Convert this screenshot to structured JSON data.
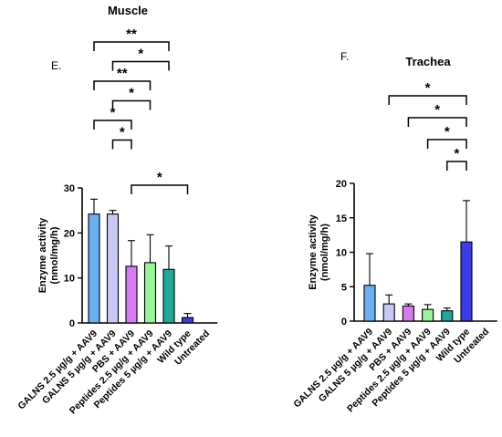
{
  "chart_data": [
    {
      "panel_label": "E.",
      "title": "Muscle",
      "type": "bar",
      "ylabel_line1": "Enzyme activity",
      "ylabel_line2": "(nmol/mg/h)",
      "ylim": [
        0,
        30
      ],
      "yticks": [
        "0",
        "10",
        "20",
        "30"
      ],
      "categories": [
        "GALNS 2.5 µg/g + AAV9",
        "GALNS 5 µg/g + AAV9",
        "PBS + AAV9",
        "Peptides 2.5 µg/g + AAV9",
        "Peptides 5 µg/g + AAV9",
        "Wild type",
        "Untreated"
      ],
      "values": [
        24.2,
        24.2,
        12.6,
        13.4,
        11.9,
        1.2,
        0
      ],
      "errors": [
        3.3,
        0.8,
        5.7,
        6.2,
        5.2,
        0.9,
        0
      ],
      "colors": [
        "#6baef2",
        "#c8c8f6",
        "#d779f0",
        "#97f595",
        "#1fa89c",
        "#3b3be8",
        "#ffffff"
      ],
      "significance": [
        {
          "from": 0,
          "to": 4,
          "label": "**"
        },
        {
          "from": 1,
          "to": 4,
          "label": "*"
        },
        {
          "from": 0,
          "to": 3,
          "label": "**"
        },
        {
          "from": 1,
          "to": 3,
          "label": "*"
        },
        {
          "from": 0,
          "to": 2,
          "label": "*"
        },
        {
          "from": 1,
          "to": 2,
          "label": "*"
        },
        {
          "from": 2,
          "to": 5,
          "label": "*"
        }
      ]
    },
    {
      "panel_label": "F.",
      "title": "Trachea",
      "type": "bar",
      "ylabel_line1": "Enzyme activity",
      "ylabel_line2": "(nmol/mg/h)",
      "ylim": [
        0,
        20
      ],
      "yticks": [
        "0",
        "5",
        "10",
        "15",
        "20"
      ],
      "categories": [
        "GALNS 2.5 µg/g + AAV9",
        "GALNS 5 µg/g + AAV9",
        "PBS + AAV9",
        "Peptides 2.5 µg/g + AAV9",
        "Peptides 5 µg/g + AAV9",
        "Wild type",
        "Untreated"
      ],
      "values": [
        5.2,
        2.5,
        2.2,
        1.7,
        1.5,
        11.5,
        0
      ],
      "errors": [
        4.6,
        1.3,
        0.3,
        0.7,
        0.4,
        6.0,
        0
      ],
      "colors": [
        "#6baef2",
        "#c8c8f6",
        "#d779f0",
        "#97f595",
        "#1fa89c",
        "#3b3be8",
        "#ffffff"
      ],
      "significance": [
        {
          "from": 1,
          "to": 5,
          "label": "*"
        },
        {
          "from": 2,
          "to": 5,
          "label": "*"
        },
        {
          "from": 3,
          "to": 5,
          "label": "*"
        },
        {
          "from": 4,
          "to": 5,
          "label": "*"
        }
      ]
    }
  ]
}
